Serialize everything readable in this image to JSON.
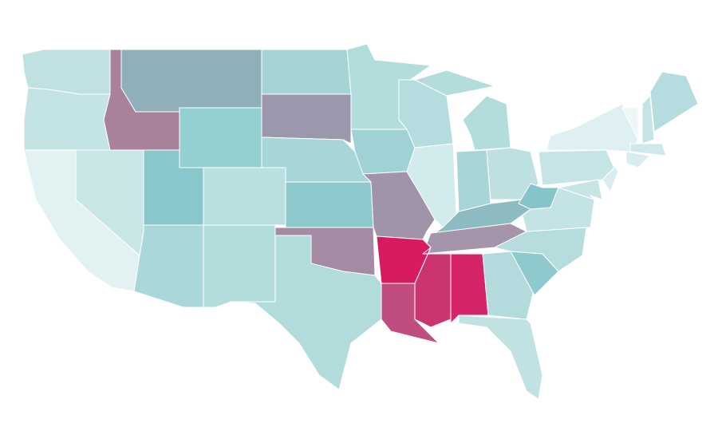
{
  "map": {
    "type": "choropleth",
    "regions": [
      {
        "color": "#bfe1e2"
      },
      {
        "color": "#c4e3e4"
      },
      {
        "color": "#e2f2f3"
      },
      {
        "color": "#c9e6e7"
      },
      {
        "color": "#a8819b"
      },
      {
        "color": "#8fb0ba"
      },
      {
        "color": "#94cfd1"
      },
      {
        "color": "#8ac7cc"
      },
      {
        "color": "#b9dfe0"
      },
      {
        "color": "#aad7d9"
      },
      {
        "color": "#b3dcdd"
      },
      {
        "color": "#a4d4d6"
      },
      {
        "color": "#9b98ae"
      },
      {
        "color": "#a6d6d7"
      },
      {
        "color": "#8dc8cc"
      },
      {
        "color": "#a58aa4"
      },
      {
        "color": "#b2dbdc"
      },
      {
        "color": "#b3dcdd"
      },
      {
        "color": "#a0d2d5"
      },
      {
        "color": "#a094a9"
      },
      {
        "color": "#b5dcde"
      },
      {
        "color": "#d2ebec"
      },
      {
        "color": "#b3dcdd"
      },
      {
        "color": "#b3dcdd"
      },
      {
        "color": "#a8d6d8"
      },
      {
        "color": "#bee0e1"
      },
      {
        "color": "#8cbbc2"
      },
      {
        "color": "#a495aa"
      },
      {
        "color": "#d81b60"
      },
      {
        "color": "#c04d7f"
      },
      {
        "color": "#cc3470"
      },
      {
        "color": "#d4246a"
      },
      {
        "color": "#b3dbdd"
      },
      {
        "color": "#c1e2e3"
      },
      {
        "color": "#8ecacd"
      },
      {
        "color": "#b6dcde"
      },
      {
        "color": "#c3e3e4"
      },
      {
        "color": "#85c4c8"
      },
      {
        "color": "#c6e4e5"
      },
      {
        "color": "#def0f1"
      },
      {
        "color": "#d8edee"
      },
      {
        "color": "#c8e5e6"
      },
      {
        "color": "#eef6f7"
      },
      {
        "color": "#c6e4e5"
      },
      {
        "color": "#b5dcde"
      },
      {
        "color": "#cfe9ea"
      },
      {
        "color": "#d8edee"
      }
    ]
  }
}
